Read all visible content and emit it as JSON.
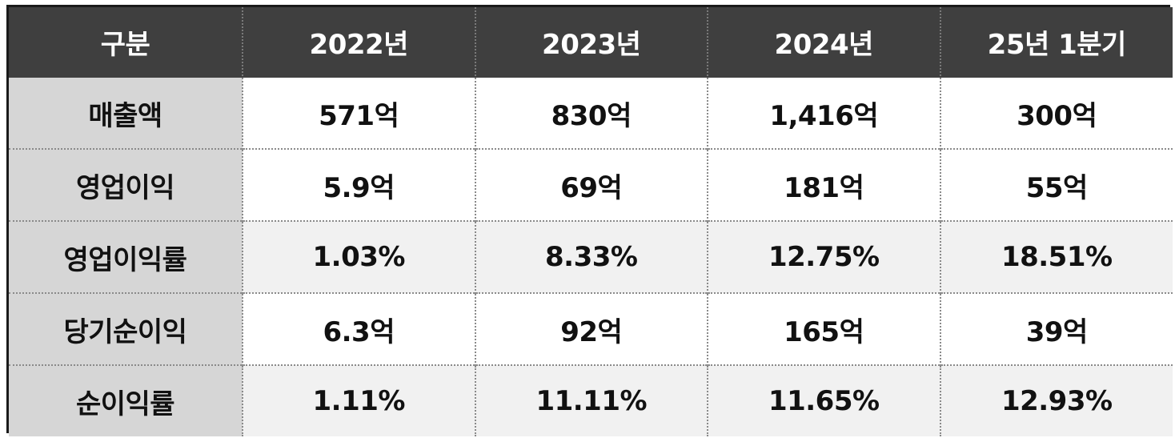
{
  "table": {
    "headers": [
      "구분",
      "2022년",
      "2023년",
      "2024년",
      "25년 1분기"
    ],
    "rows": [
      {
        "label": "매출액",
        "values": [
          "571억",
          "830억",
          "1,416억",
          "300억"
        ]
      },
      {
        "label": "영업이익",
        "values": [
          "5.9억",
          "69억",
          "181억",
          "55억"
        ]
      },
      {
        "label": "영업이익률",
        "values": [
          "1.03%",
          "8.33%",
          "12.75%",
          "18.51%"
        ]
      },
      {
        "label": "당기순이익",
        "values": [
          "6.3억",
          "92억",
          "165억",
          "39억"
        ]
      },
      {
        "label": "순이익률",
        "values": [
          "1.11%",
          "11.11%",
          "11.65%",
          "12.93%"
        ]
      }
    ]
  }
}
